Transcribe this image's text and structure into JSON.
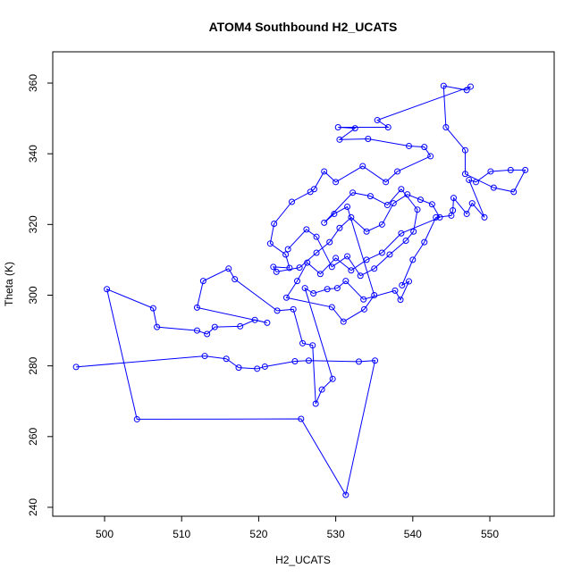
{
  "chart_data": {
    "type": "line",
    "title": "ATOM4 Southbound H2_UCATS",
    "xlabel": "H2_UCATS",
    "ylabel": "Theta (K)",
    "color": "#0000ff",
    "marker": "circle",
    "x": [
      496.3,
      513,
      515.8,
      517.4,
      519.8,
      520.8,
      524.7,
      526.5,
      533,
      535.1,
      531.3,
      525.5,
      504.2,
      500.3,
      506.3,
      506.8,
      512,
      513.3,
      514.3,
      517.6,
      519.5,
      521.1,
      512,
      512.8,
      516.1,
      516.9,
      522.4,
      524.5,
      525.7,
      527,
      527.4,
      528.2,
      529.6,
      526,
      527.1,
      528.9,
      530.2,
      531.3,
      533.6,
      537.7,
      538.4,
      539.5,
      538.6,
      540,
      541.5,
      543,
      545,
      545.2,
      545.3,
      547,
      547.7,
      549.3,
      547.3,
      548.2,
      550.1,
      552.7,
      554.6,
      553.1,
      550.5,
      546.8,
      546.8,
      544.3,
      544,
      547,
      547.5,
      535.4,
      536.8,
      530.3,
      532.5,
      530.5,
      534.2,
      539.5,
      541.5,
      542.3,
      538,
      536.5,
      533.5,
      530,
      528.5,
      527.2,
      526.7,
      524.3,
      522,
      521.5,
      523.5,
      524,
      521.9,
      522.3,
      525.3,
      527.5,
      529.2,
      530.5,
      532,
      534,
      536,
      537.5,
      539.3,
      541,
      542.5,
      543.5,
      538.5,
      536,
      534,
      532,
      530,
      528,
      526.3,
      525,
      523.6,
      529.5,
      531,
      533.7,
      535,
      531.5,
      529.8,
      528.5,
      532.2,
      534.5,
      536.7,
      538.5,
      540.6,
      540.1,
      539.1,
      537,
      535,
      533.2,
      531.5,
      529.5,
      527.5,
      526.2,
      523.8
    ],
    "values": [
      279.7,
      282.8,
      282,
      279.5,
      279.2,
      279.8,
      281.3,
      281.5,
      281.2,
      281.5,
      243.5,
      265,
      264.9,
      301.7,
      296.3,
      291,
      290,
      289,
      291,
      291.2,
      293,
      292.2,
      296.5,
      304,
      307.5,
      304.5,
      295.6,
      296,
      286.4,
      285.8,
      269.3,
      273.3,
      276.3,
      302,
      300.5,
      301.7,
      302,
      304,
      298.8,
      301.3,
      298.7,
      303.9,
      302.8,
      310,
      315,
      322,
      322.5,
      324,
      327.5,
      323,
      326,
      322,
      332.6,
      332,
      335,
      335.4,
      335.4,
      329.2,
      330.4,
      334.3,
      341,
      347.5,
      359.2,
      358,
      359,
      349.5,
      347.5,
      347.5,
      347.2,
      344,
      344.2,
      342.2,
      341.9,
      339.3,
      335,
      332,
      336.5,
      332,
      335,
      330,
      329.2,
      326.4,
      320.2,
      314.6,
      311.5,
      307.7,
      308,
      306.6,
      307.8,
      312,
      315,
      319,
      322,
      318,
      320,
      326,
      328.5,
      327,
      325.7,
      322,
      317.5,
      312,
      310,
      307,
      310.5,
      306,
      309.2,
      304,
      299.3,
      296.6,
      292.5,
      296,
      300,
      325,
      323,
      320.5,
      329,
      328,
      325.5,
      330,
      324.2,
      318,
      315.4,
      311.5,
      307.5,
      305.5,
      311,
      308,
      316.5,
      318.6,
      313
    ],
    "xlim": [
      493.27,
      558.35
    ],
    "ylim": [
      237.47,
      368.84
    ],
    "xticks": [
      500,
      510,
      520,
      530,
      540,
      550
    ],
    "yticks": [
      240,
      260,
      280,
      300,
      320,
      340,
      360
    ]
  }
}
